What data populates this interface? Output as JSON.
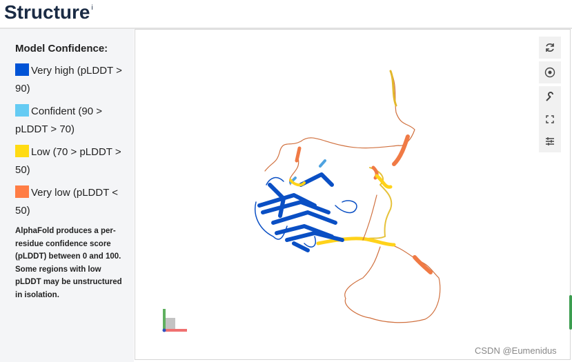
{
  "header": {
    "title": "Structure",
    "info": "i"
  },
  "legend": {
    "title": "Model Confidence:",
    "items": [
      {
        "label": "Very high (pLDDT > 90)",
        "color": "#0053d6"
      },
      {
        "label": "Confident (90 > pLDDT > 70)",
        "color": "#65cbf3"
      },
      {
        "label": "Low (70 > pLDDT > 50)",
        "color": "#ffdb13"
      },
      {
        "label": "Very low (pLDDT < 50)",
        "color": "#ff7d45"
      }
    ],
    "description": "AlphaFold produces a per-residue confidence score (pLDDT) between 0 and 100. Some regions with low pLDDT may be unstructured in isolation."
  },
  "watermark": "CSDN @Eumenidus"
}
